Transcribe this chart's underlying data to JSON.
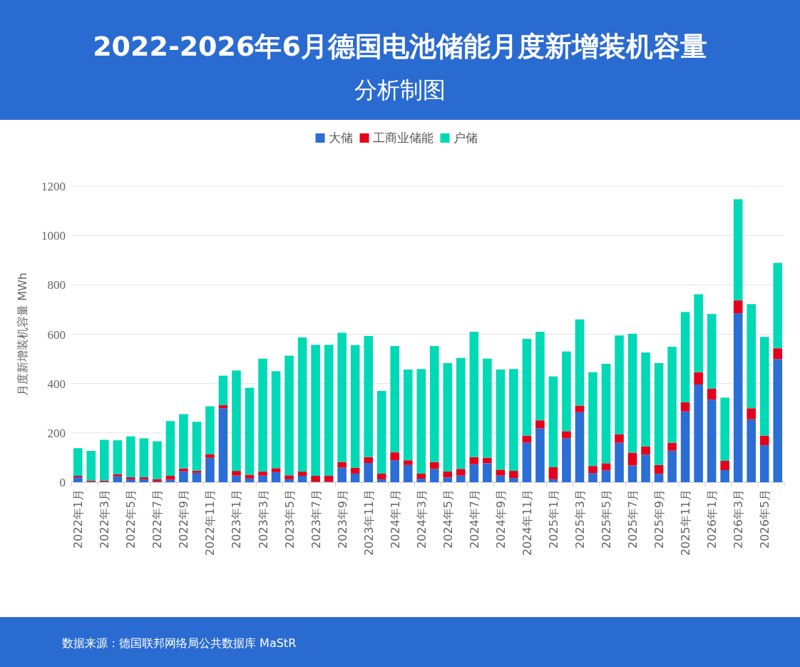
{
  "chart_data": {
    "type": "bar",
    "title": "2022-2026年6月德国电池储能月度新增装机容量",
    "subtitle": "分析制图",
    "ylabel": "月度新增装机容量 MWh",
    "stacked": true,
    "legend": "top",
    "grid": "y",
    "ylim": [
      0,
      1200
    ],
    "yticks": [
      0,
      200,
      400,
      600,
      800,
      1000,
      1200
    ],
    "categories": [
      "2022年1月",
      null,
      "2022年3月",
      null,
      "2022年5月",
      null,
      "2022年7月",
      null,
      "2022年9月",
      null,
      "2022年11月",
      null,
      "2023年1月",
      null,
      "2023年3月",
      null,
      "2023年5月",
      null,
      "2023年7月",
      null,
      "2023年9月",
      null,
      "2023年11月",
      null,
      "2024年1月",
      null,
      "2024年3月",
      null,
      "2024年5月",
      null,
      "2024年7月",
      null,
      "2024年9月",
      null,
      "2024年11月",
      null,
      "2025年1月",
      null,
      "2025年3月",
      null,
      "2025年5月",
      null,
      "2025年7月",
      null,
      "2025年9月",
      null,
      "2025年11月",
      null,
      "2026年1月",
      null,
      "2026年3月",
      null,
      "2026年5月",
      null
    ],
    "series": [
      {
        "name": "大储",
        "color": "#2a6ed6",
        "values": [
          20,
          2,
          2,
          24,
          12,
          12,
          3,
          10,
          44,
          38,
          99,
          300,
          27,
          15,
          27,
          41,
          12,
          26,
          2,
          2,
          59,
          35,
          78,
          12,
          89,
          70,
          14,
          54,
          19,
          27,
          73,
          77,
          27,
          17,
          160,
          218,
          12,
          178,
          284,
          37,
          48,
          160,
          68,
          112,
          34,
          128,
          287,
          396,
          335,
          49,
          685,
          255,
          150,
          499
        ]
      },
      {
        "name": "工商业储能",
        "color": "#e5001c",
        "values": [
          6,
          5,
          5,
          8,
          8,
          8,
          10,
          16,
          12,
          9,
          14,
          13,
          19,
          15,
          16,
          16,
          16,
          17,
          24,
          24,
          23,
          23,
          24,
          23,
          32,
          19,
          21,
          28,
          25,
          27,
          29,
          22,
          24,
          29,
          29,
          33,
          49,
          29,
          27,
          29,
          29,
          34,
          52,
          33,
          36,
          32,
          37,
          50,
          44,
          38,
          52,
          45,
          39,
          44
        ]
      },
      {
        "name": "户储",
        "color": "#00d9b5",
        "values": [
          112,
          120,
          165,
          138,
          166,
          158,
          153,
          222,
          220,
          198,
          195,
          119,
          407,
          353,
          458,
          393,
          485,
          544,
          531,
          531,
          524,
          498,
          491,
          335,
          431,
          368,
          424,
          470,
          439,
          450,
          508,
          402,
          406,
          413,
          392,
          359,
          368,
          323,
          349,
          380,
          403,
          401,
          482,
          381,
          413,
          389,
          366,
          316,
          303,
          256,
          410,
          422,
          400,
          346
        ]
      }
    ],
    "annotations": [
      "数据来源：德国联邦网络局公共数据库 MaStR"
    ]
  }
}
